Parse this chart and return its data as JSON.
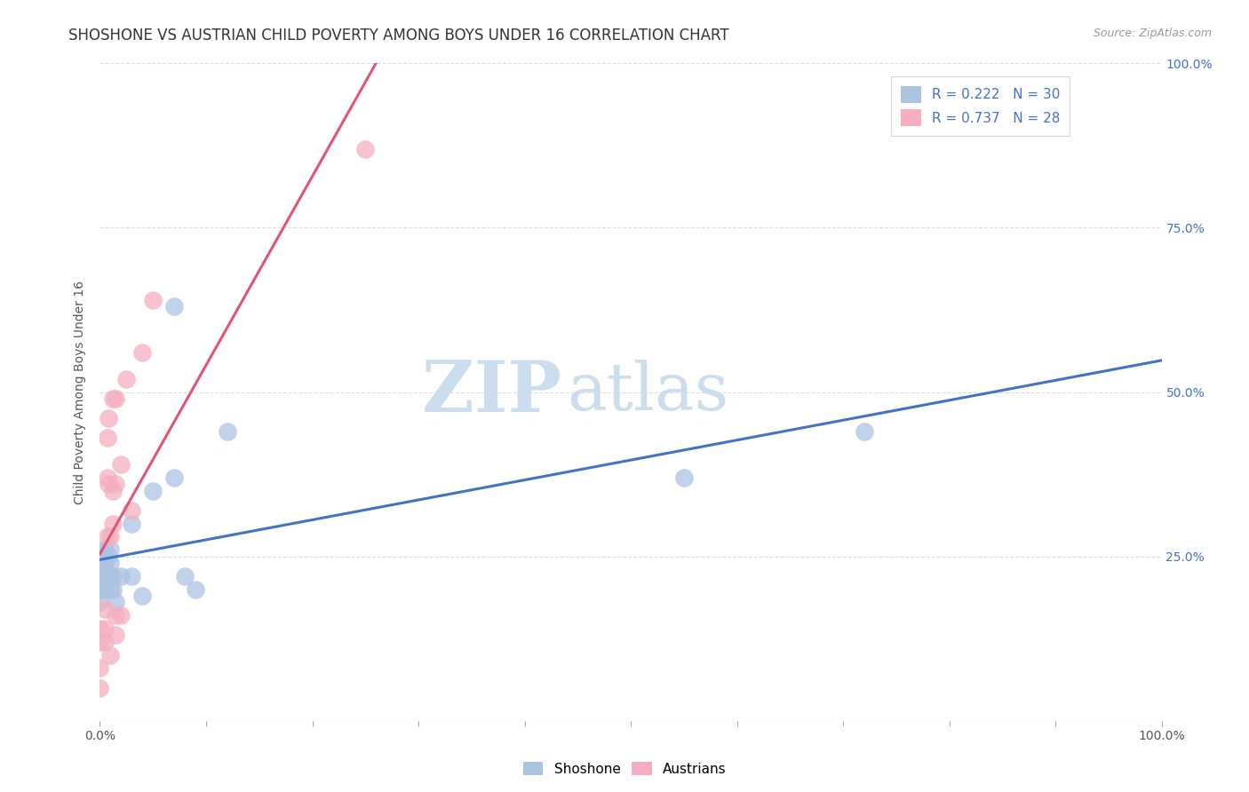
{
  "title": "SHOSHONE VS AUSTRIAN CHILD POVERTY AMONG BOYS UNDER 16 CORRELATION CHART",
  "source": "Source: ZipAtlas.com",
  "ylabel": "Child Poverty Among Boys Under 16",
  "xlim": [
    0,
    1.0
  ],
  "ylim": [
    0,
    1.0
  ],
  "background_color": "#ffffff",
  "grid_color": "#dddddd",
  "watermark_zip": "ZIP",
  "watermark_atlas": "atlas",
  "shoshone_color": "#aac4e2",
  "austrian_color": "#f5afc0",
  "shoshone_line_color": "#4472c4",
  "austrian_line_color": "#e05575",
  "shoshone_R": 0.222,
  "shoshone_N": 30,
  "austrian_R": 0.737,
  "austrian_N": 28,
  "tick_color": "#4472c4",
  "shoshone_x": [
    0.0,
    0.0,
    0.0,
    0.0,
    0.0,
    0.005,
    0.005,
    0.005,
    0.005,
    0.008,
    0.008,
    0.01,
    0.01,
    0.01,
    0.01,
    0.012,
    0.012,
    0.015,
    0.02,
    0.03,
    0.03,
    0.04,
    0.05,
    0.07,
    0.07,
    0.08,
    0.09,
    0.12,
    0.55,
    0.72
  ],
  "shoshone_y": [
    0.18,
    0.2,
    0.22,
    0.23,
    0.26,
    0.2,
    0.22,
    0.24,
    0.26,
    0.22,
    0.25,
    0.2,
    0.22,
    0.24,
    0.26,
    0.2,
    0.22,
    0.18,
    0.22,
    0.22,
    0.3,
    0.19,
    0.35,
    0.37,
    0.63,
    0.22,
    0.2,
    0.44,
    0.37,
    0.44
  ],
  "austrian_x": [
    0.0,
    0.0,
    0.0,
    0.0,
    0.005,
    0.005,
    0.005,
    0.007,
    0.007,
    0.007,
    0.008,
    0.008,
    0.01,
    0.01,
    0.012,
    0.012,
    0.012,
    0.015,
    0.015,
    0.015,
    0.015,
    0.02,
    0.02,
    0.025,
    0.03,
    0.04,
    0.05,
    0.25
  ],
  "austrian_y": [
    0.05,
    0.08,
    0.12,
    0.14,
    0.12,
    0.14,
    0.17,
    0.28,
    0.37,
    0.43,
    0.36,
    0.46,
    0.1,
    0.28,
    0.3,
    0.35,
    0.49,
    0.13,
    0.16,
    0.36,
    0.49,
    0.16,
    0.39,
    0.52,
    0.32,
    0.56,
    0.64,
    0.87
  ],
  "title_fontsize": 12,
  "axis_label_fontsize": 10,
  "tick_fontsize": 10,
  "legend_fontsize": 11,
  "source_fontsize": 9
}
